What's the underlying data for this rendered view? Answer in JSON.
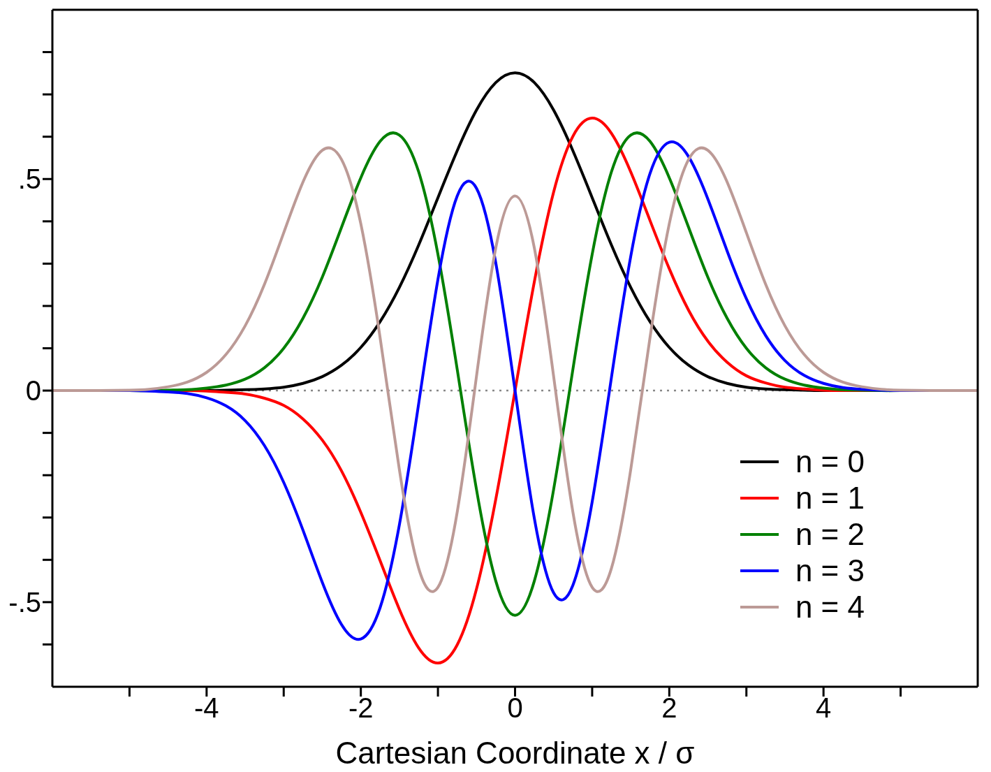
{
  "chart_data": {
    "type": "line",
    "xlabel": "Cartesian Coordinate x / σ",
    "x": [
      -6,
      -5.5,
      -5,
      -4.75,
      -4.5,
      -4.25,
      -4,
      -3.75,
      -3.5,
      -3.25,
      -3,
      -2.75,
      -2.5,
      -2.25,
      -2,
      -1.75,
      -1.5,
      -1.25,
      -1,
      -0.75,
      -0.5,
      -0.25,
      0,
      0.25,
      0.5,
      0.75,
      1,
      1.25,
      1.5,
      1.75,
      2,
      2.25,
      2.5,
      2.75,
      3,
      3.25,
      3.5,
      3.75,
      4,
      4.25,
      4.5,
      4.75,
      5,
      5.5,
      6
    ],
    "series": [
      {
        "name": "n = 0",
        "color": "#000000",
        "values": [
          0,
          0,
          0,
          0,
          0,
          0,
          0,
          0.001,
          0.002,
          0.004,
          0.008,
          0.017,
          0.033,
          0.06,
          0.102,
          0.163,
          0.244,
          0.344,
          0.456,
          0.567,
          0.663,
          0.728,
          0.751,
          0.728,
          0.663,
          0.567,
          0.456,
          0.344,
          0.244,
          0.163,
          0.102,
          0.06,
          0.033,
          0.017,
          0.008,
          0.004,
          0.002,
          0.001,
          0,
          0,
          0,
          0,
          0,
          0,
          0
        ]
      },
      {
        "name": "n = 1",
        "color": "#ff0000",
        "values": [
          null,
          null,
          null,
          null,
          0,
          0,
          -0.001,
          -0.004,
          -0.008,
          -0.018,
          -0.035,
          -0.067,
          -0.117,
          -0.19,
          -0.288,
          -0.402,
          -0.517,
          -0.608,
          -0.644,
          -0.601,
          -0.469,
          -0.257,
          0,
          0.257,
          0.469,
          0.601,
          0.644,
          0.608,
          0.517,
          0.402,
          0.288,
          0.19,
          0.117,
          0.067,
          0.035,
          0.018,
          0.008,
          0.004,
          0.001,
          0,
          0,
          0,
          null,
          null,
          null
        ]
      },
      {
        "name": "n = 2",
        "color": "#008000",
        "values": [
          null,
          null,
          0,
          0,
          0.001,
          0.002,
          0.006,
          0.013,
          0.027,
          0.054,
          0.1,
          0.171,
          0.268,
          0.386,
          0.503,
          0.589,
          0.604,
          0.517,
          0.322,
          0.05,
          -0.234,
          -0.45,
          -0.531,
          -0.45,
          -0.234,
          0.05,
          0.322,
          0.517,
          0.604,
          0.589,
          0.503,
          0.386,
          0.268,
          0.171,
          0.1,
          0.054,
          0.027,
          0.013,
          0.006,
          0.002,
          0.001,
          0,
          0,
          null,
          null
        ]
      },
      {
        "name": "n = 3",
        "color": "#0000ff",
        "values": [
          0,
          0,
          0,
          -0.001,
          -0.003,
          -0.007,
          -0.017,
          -0.036,
          -0.071,
          -0.13,
          -0.217,
          -0.33,
          -0.453,
          -0.553,
          -0.587,
          -0.513,
          -0.317,
          -0.031,
          0.263,
          0.46,
          0.478,
          0.302,
          0,
          -0.302,
          -0.478,
          -0.46,
          -0.263,
          0.031,
          0.317,
          0.513,
          0.587,
          0.553,
          0.453,
          0.33,
          0.217,
          0.13,
          0.071,
          0.036,
          0.017,
          0.007,
          0.003,
          0.001,
          0,
          0,
          0
        ]
      },
      {
        "name": "n = 4",
        "color": "#bc9a96",
        "values": [
          0,
          0,
          0.001,
          0.003,
          0.009,
          0.02,
          0.043,
          0.085,
          0.153,
          0.251,
          0.373,
          0.493,
          0.568,
          0.546,
          0.394,
          0.125,
          -0.187,
          -0.42,
          -0.465,
          -0.287,
          0.034,
          0.337,
          0.46,
          0.337,
          0.034,
          -0.287,
          -0.465,
          -0.42,
          -0.187,
          0.125,
          0.394,
          0.546,
          0.568,
          0.493,
          0.373,
          0.251,
          0.153,
          0.085,
          0.043,
          0.02,
          0.009,
          0.003,
          0.001,
          0,
          0
        ]
      }
    ],
    "xlim": [
      -6,
      6
    ],
    "xticks": [
      {
        "value": -5,
        "label": null
      },
      -4,
      {
        "value": -3,
        "label": null
      },
      -2,
      {
        "value": -1,
        "label": null
      },
      0,
      {
        "value": 1,
        "label": null
      },
      2,
      {
        "value": 3,
        "label": null
      },
      4,
      {
        "value": 5,
        "label": null
      }
    ],
    "ylim": [
      -0.7,
      0.9
    ],
    "yticks": [
      {
        "value": -0.6,
        "label": null
      },
      {
        "value": -0.5,
        "label": "-.5"
      },
      {
        "value": -0.4,
        "label": null
      },
      {
        "value": -0.3,
        "label": null
      },
      {
        "value": -0.2,
        "label": null
      },
      {
        "value": -0.1,
        "label": null
      },
      0,
      {
        "value": 0.1,
        "label": null
      },
      {
        "value": 0.2,
        "label": null
      },
      {
        "value": 0.3,
        "label": null
      },
      {
        "value": 0.4,
        "label": null
      },
      {
        "value": 0.5,
        "label": ".5"
      },
      {
        "value": 0.6,
        "label": null
      },
      {
        "value": 0.7,
        "label": null
      },
      {
        "value": 0.8,
        "label": null
      }
    ],
    "ref_lines": [
      {
        "axis": "y",
        "value": 0,
        "color": "#888888",
        "line_style": "dotted"
      }
    ],
    "grid": false,
    "legend": "bottom right",
    "marker": "none",
    "line_style": "solid"
  }
}
